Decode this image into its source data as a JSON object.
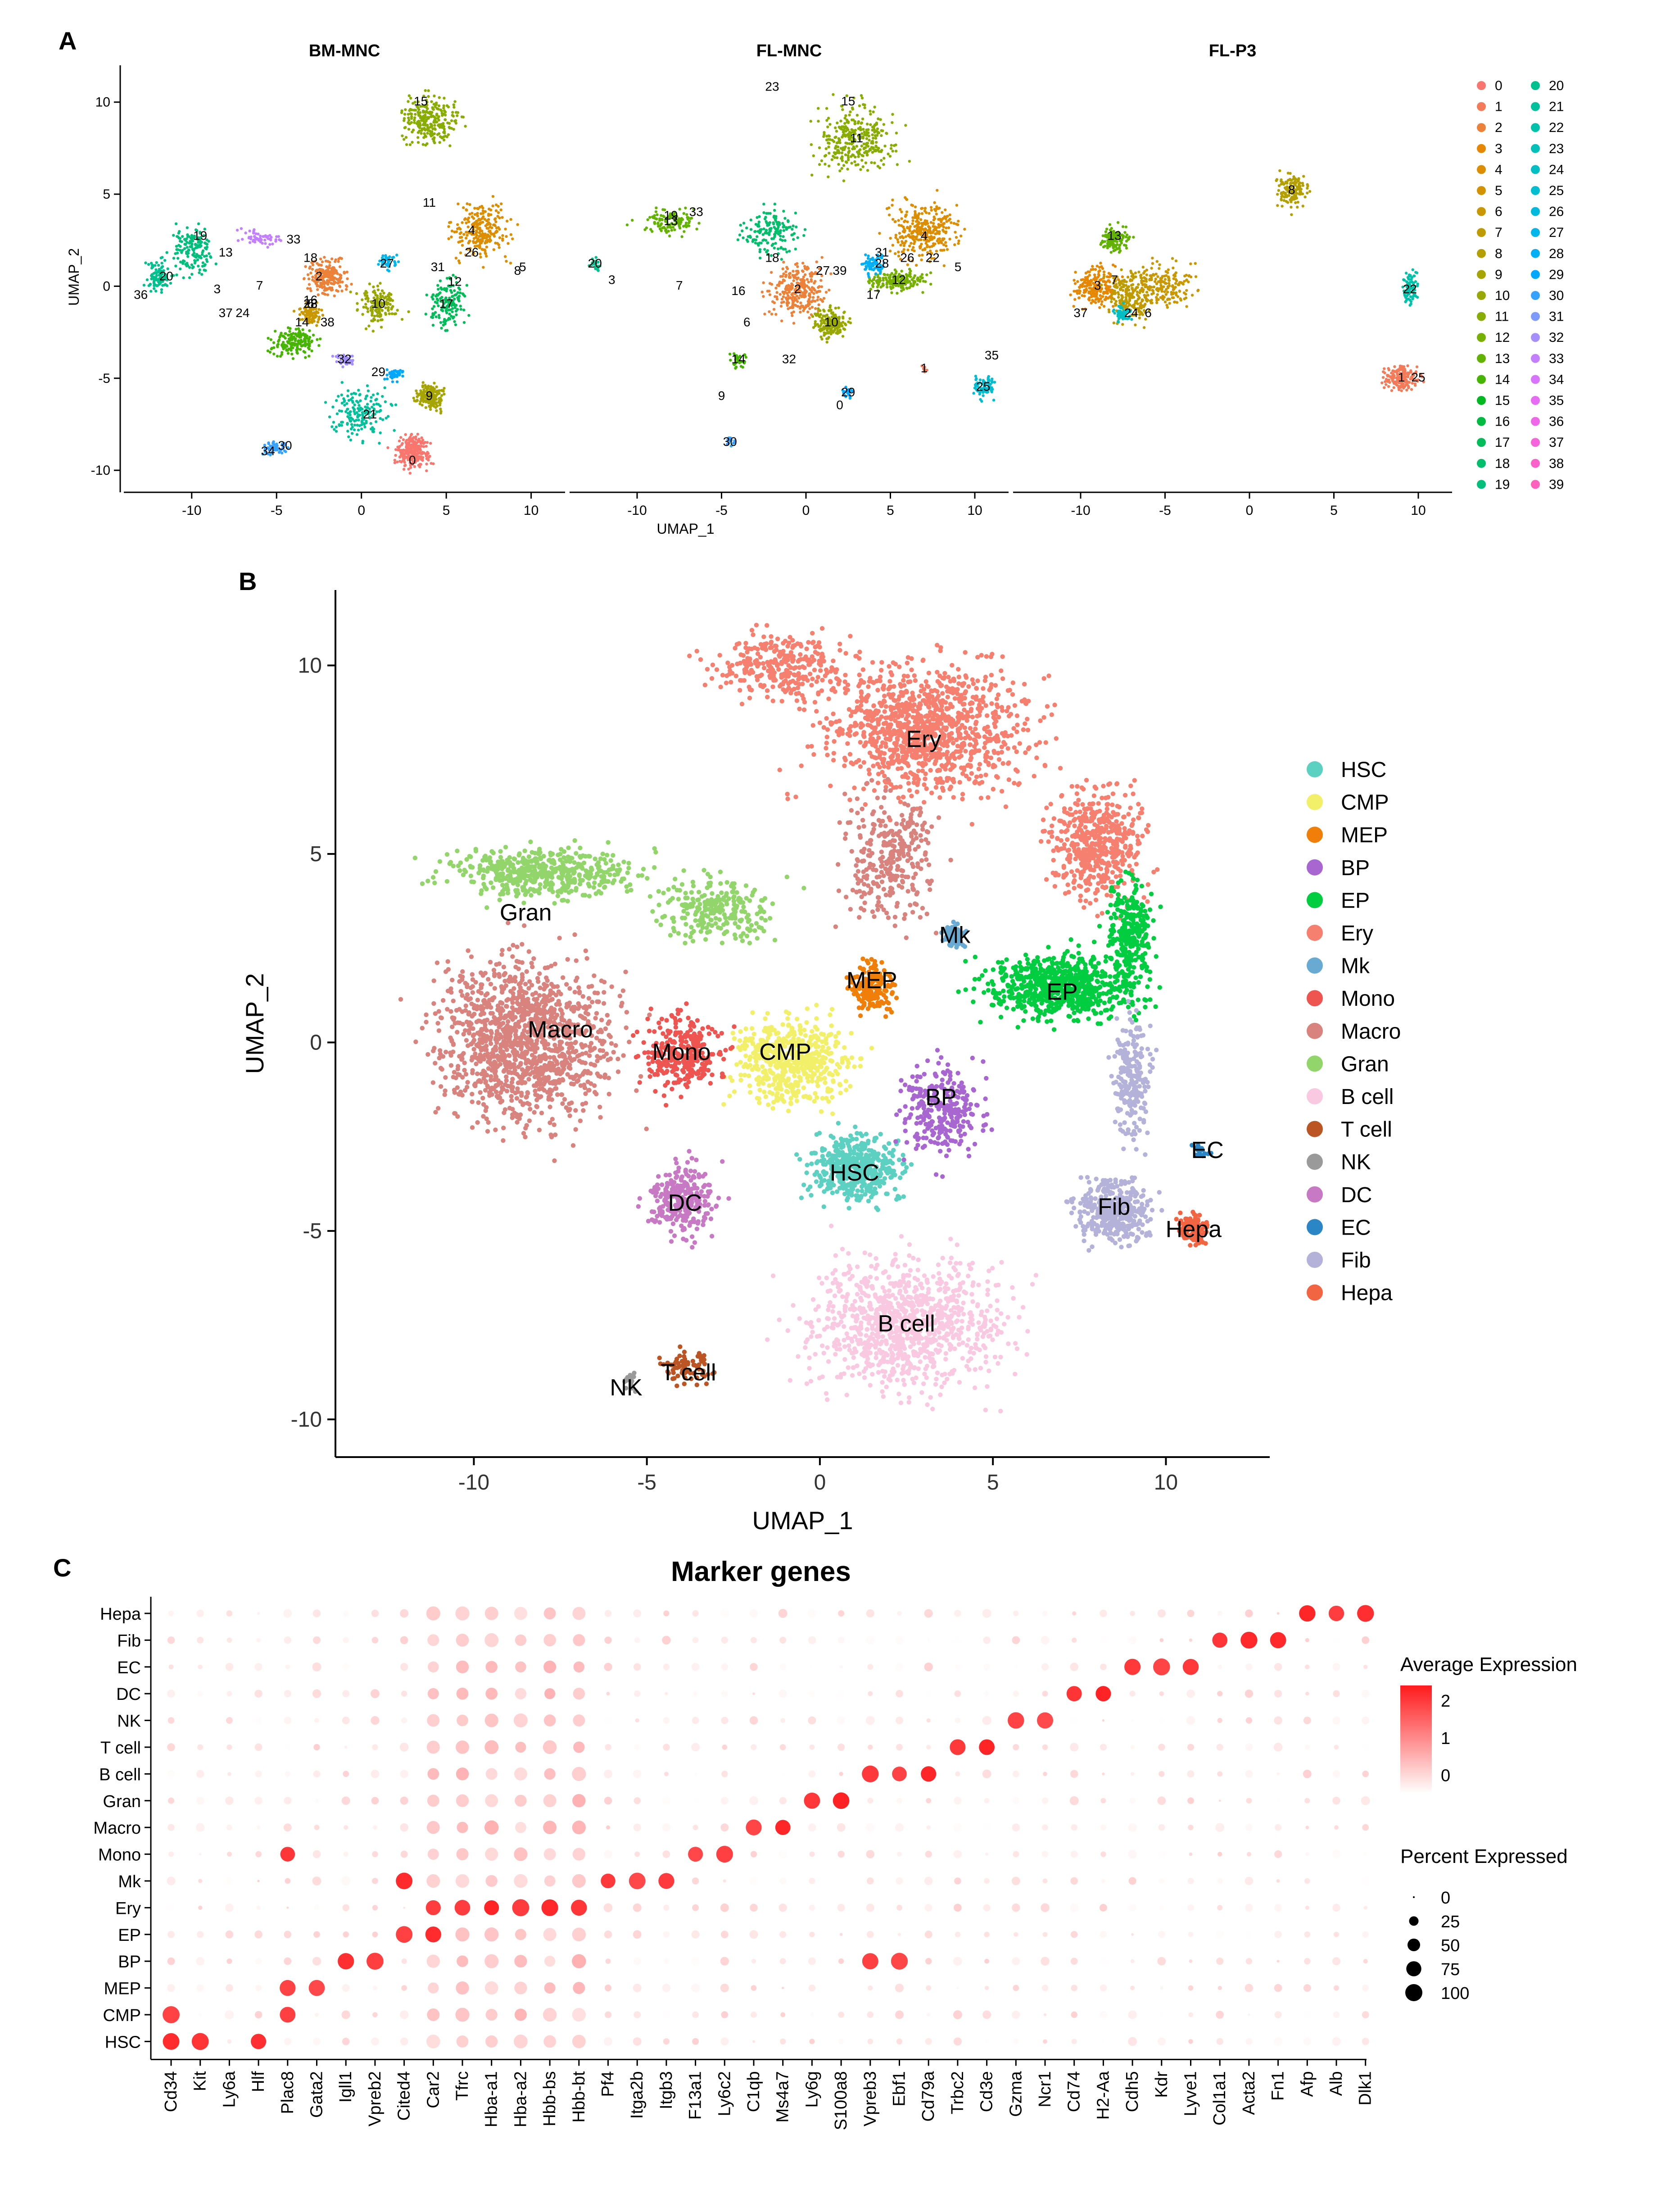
{
  "panels": {
    "a_label": "A",
    "b_label": "B",
    "c_label": "C"
  },
  "chart_data": [
    {
      "type": "scatter",
      "id": "A",
      "facets": [
        "BM-MNC",
        "FL-MNC",
        "FL-P3"
      ],
      "xlabel": "UMAP_1",
      "ylabel": "UMAP_2",
      "xlim": [
        -14,
        12
      ],
      "ylim": [
        -11,
        12
      ],
      "xticks": [
        -10,
        -5,
        0,
        5,
        10
      ],
      "yticks": [
        -10,
        -5,
        0,
        5,
        10
      ],
      "legend_title": "",
      "legend_position": "right",
      "clusters": [
        "0",
        "1",
        "2",
        "3",
        "4",
        "5",
        "6",
        "7",
        "8",
        "9",
        "10",
        "11",
        "12",
        "13",
        "14",
        "15",
        "16",
        "17",
        "18",
        "19",
        "20",
        "21",
        "22",
        "23",
        "24",
        "25",
        "26",
        "27",
        "28",
        "29",
        "30",
        "31",
        "32",
        "33",
        "34",
        "35",
        "36",
        "37",
        "38",
        "39"
      ],
      "cluster_colors": [
        "#F8766D",
        "#F37B59",
        "#EC8239",
        "#E58700",
        "#DC8D00",
        "#D39200",
        "#C99800",
        "#BE9C00",
        "#B3A000",
        "#A6A400",
        "#98A800",
        "#88AC00",
        "#76B000",
        "#61B300",
        "#45B500",
        "#00B81F",
        "#00BA42",
        "#00BC59",
        "#00BE6C",
        "#00BF7D",
        "#00C08D",
        "#00C19C",
        "#00C1AA",
        "#00C0B8",
        "#00BFC4",
        "#00BDD1",
        "#00BADE",
        "#00B6EB",
        "#00B0F6",
        "#00A9FF",
        "#35A2FF",
        "#7C9AFF",
        "#A58FFF",
        "#C280FF",
        "#D874FD",
        "#E66CF3",
        "#F066E8",
        "#F763DA",
        "#FC61CB",
        "#FF62BC"
      ],
      "cluster_label_positions": {
        "BM-MNC": [
          [
            3,
            -9.5,
            "0"
          ],
          [
            -2.5,
            0.5,
            "2"
          ],
          [
            -8.5,
            -0.2,
            "3"
          ],
          [
            6.5,
            3,
            "4"
          ],
          [
            9.5,
            1,
            "5"
          ],
          [
            -3,
            -1,
            "6"
          ],
          [
            -6,
            0,
            "7"
          ],
          [
            9.2,
            0.8,
            "8"
          ],
          [
            4,
            -6,
            "9"
          ],
          [
            1,
            -1,
            "10"
          ],
          [
            4,
            4.5,
            "11"
          ],
          [
            5.5,
            0.2,
            "12"
          ],
          [
            -8,
            1.8,
            "13"
          ],
          [
            -3.5,
            -2,
            "14"
          ],
          [
            3.5,
            10,
            "15"
          ],
          [
            -3,
            -0.8,
            "16"
          ],
          [
            5,
            -1,
            "17"
          ],
          [
            -3,
            1.5,
            "18"
          ],
          [
            -9.5,
            2.7,
            "19"
          ],
          [
            -11.5,
            0.5,
            "20"
          ],
          [
            0.5,
            -7,
            "21"
          ],
          [
            -3,
            -1,
            "23"
          ],
          [
            -7,
            -1.5,
            "24"
          ],
          [
            6.5,
            1.8,
            "26"
          ],
          [
            1.5,
            1.2,
            "27"
          ],
          [
            -3,
            -1,
            "28"
          ],
          [
            1,
            -4.7,
            "29"
          ],
          [
            -4.5,
            -8.7,
            "30"
          ],
          [
            4.5,
            1,
            "31"
          ],
          [
            -1,
            -4,
            "32"
          ],
          [
            -4,
            2.5,
            "33"
          ],
          [
            -5.5,
            -9,
            "34"
          ],
          [
            -13,
            -0.5,
            "36"
          ],
          [
            -8,
            -1.5,
            "37"
          ],
          [
            -2,
            -2,
            "38"
          ]
        ],
        "FL-MNC": [
          [
            2,
            -6.5,
            "0"
          ],
          [
            7,
            -4.5,
            "1"
          ],
          [
            -0.5,
            -0.2,
            "2"
          ],
          [
            -11.5,
            0.3,
            "3"
          ],
          [
            7,
            2.7,
            "4"
          ],
          [
            9,
            1,
            "5"
          ],
          [
            -3.5,
            -2,
            "6"
          ],
          [
            -7.5,
            0,
            "7"
          ],
          [
            -5,
            -6,
            "9"
          ],
          [
            1.5,
            -2,
            "10"
          ],
          [
            3,
            8,
            "11"
          ],
          [
            5.5,
            0.3,
            "12"
          ],
          [
            -8,
            3.5,
            "13"
          ],
          [
            -4,
            -4,
            "14"
          ],
          [
            2.5,
            10,
            "15"
          ],
          [
            -4,
            -0.3,
            "16"
          ],
          [
            4,
            -0.5,
            "17"
          ],
          [
            -2,
            1.5,
            "18"
          ],
          [
            -8,
            3.8,
            "19"
          ],
          [
            -12.5,
            1.2,
            "20"
          ],
          [
            7.5,
            1.5,
            "22"
          ],
          [
            -2,
            10.8,
            "23"
          ],
          [
            10.5,
            -5.5,
            "25"
          ],
          [
            6,
            1.5,
            "26"
          ],
          [
            1,
            0.8,
            "27"
          ],
          [
            4.5,
            1.2,
            "28"
          ],
          [
            2.5,
            -5.8,
            "29"
          ],
          [
            -4.5,
            -8.5,
            "30"
          ],
          [
            4.5,
            1.8,
            "31"
          ],
          [
            -1,
            -4,
            "32"
          ],
          [
            -6.5,
            4,
            "33"
          ],
          [
            11,
            -3.8,
            "35"
          ],
          [
            2,
            0.8,
            "39"
          ]
        ],
        "FL-P3": [
          [
            9,
            -5,
            "1"
          ],
          [
            -9,
            0,
            "3"
          ],
          [
            -6,
            -1.5,
            "6"
          ],
          [
            -8,
            0.3,
            "7"
          ],
          [
            2.5,
            5.2,
            "8"
          ],
          [
            -8,
            2.7,
            "13"
          ],
          [
            -7,
            -1.5,
            "24"
          ],
          [
            9.5,
            -0.2,
            "22"
          ],
          [
            10,
            -5,
            "25"
          ],
          [
            -10,
            -1.5,
            "37"
          ]
        ]
      }
    },
    {
      "type": "scatter",
      "id": "B",
      "xlabel": "UMAP_1",
      "ylabel": "UMAP_2",
      "xlim": [
        -14,
        13
      ],
      "ylim": [
        -11,
        12
      ],
      "xticks": [
        -10,
        -5,
        0,
        5,
        10
      ],
      "yticks": [
        -10,
        -5,
        0,
        5,
        10
      ],
      "legend_position": "right",
      "cell_types": [
        {
          "name": "HSC",
          "color": "#5CD1C2",
          "label_at": [
            1,
            -3.5
          ]
        },
        {
          "name": "CMP",
          "color": "#F1F068",
          "label_at": [
            -1,
            -0.3
          ]
        },
        {
          "name": "MEP",
          "color": "#F07F0A",
          "label_at": [
            1.5,
            1.6
          ]
        },
        {
          "name": "BP",
          "color": "#A866D1",
          "label_at": [
            3.5,
            -1.5
          ]
        },
        {
          "name": "EP",
          "color": "#00CD3F",
          "label_at": [
            7,
            1.3
          ]
        },
        {
          "name": "Ery",
          "color": "#F6806F",
          "label_at": [
            3,
            8
          ]
        },
        {
          "name": "Mk",
          "color": "#69AAD2",
          "label_at": [
            3.9,
            2.8
          ]
        },
        {
          "name": "Mono",
          "color": "#EE5551",
          "label_at": [
            -4,
            -0.3
          ]
        },
        {
          "name": "Macro",
          "color": "#D9837E",
          "label_at": [
            -7.5,
            0.3
          ]
        },
        {
          "name": "Gran",
          "color": "#92D66B",
          "label_at": [
            -8.5,
            3.4
          ]
        },
        {
          "name": "B cell",
          "color": "#F9C9E1",
          "label_at": [
            2.5,
            -7.5
          ]
        },
        {
          "name": "T cell",
          "color": "#BB5523",
          "label_at": [
            -3.8,
            -8.8
          ]
        },
        {
          "name": "NK",
          "color": "#9A9A9A",
          "label_at": [
            -5.6,
            -9.2
          ]
        },
        {
          "name": "DC",
          "color": "#C779C4",
          "label_at": [
            -3.9,
            -4.3
          ]
        },
        {
          "name": "EC",
          "color": "#2A86C4",
          "label_at": [
            11.2,
            -2.9
          ]
        },
        {
          "name": "Fib",
          "color": "#B5B2DA",
          "label_at": [
            8.5,
            -4.4
          ]
        },
        {
          "name": "Hepa",
          "color": "#F26542",
          "label_at": [
            10.8,
            -5
          ]
        }
      ]
    },
    {
      "type": "dot",
      "id": "C",
      "title": "Marker genes",
      "genes": [
        "Cd34",
        "Kit",
        "Ly6a",
        "Hlf",
        "Plac8",
        "Gata2",
        "Igll1",
        "Vpreb2",
        "Cited4",
        "Car2",
        "Tfrc",
        "Hba-a1",
        "Hba-a2",
        "Hbb-bs",
        "Hbb-bt",
        "Pf4",
        "Itga2b",
        "Itgb3",
        "F13a1",
        "Ly6c2",
        "C1qb",
        "Ms4a7",
        "Ly6g",
        "S100a8",
        "Vpreb3",
        "Ebf1",
        "Cd79a",
        "Trbc2",
        "Cd3e",
        "Gzma",
        "Ncr1",
        "Cd74",
        "H2-Aa",
        "Cdh5",
        "Kdr",
        "Lyve1",
        "Col1a1",
        "Acta2",
        "Fn1",
        "Afp",
        "Alb",
        "Dlk1"
      ],
      "cell_types": [
        "Hepa",
        "Fib",
        "EC",
        "DC",
        "NK",
        "T cell",
        "B cell",
        "Gran",
        "Macro",
        "Mono",
        "Mk",
        "Ery",
        "EP",
        "BP",
        "MEP",
        "CMP",
        "HSC"
      ],
      "color_legend_title": "Average Expression",
      "color_ticks": [
        2,
        1,
        0
      ],
      "color_range": [
        -0.5,
        2.4
      ],
      "size_legend_title": "Percent Expressed",
      "size_ticks": [
        0,
        25,
        50,
        75,
        100
      ],
      "markers": {
        "Hepa": [
          "Afp",
          "Alb",
          "Dlk1"
        ],
        "Fib": [
          "Col1a1",
          "Acta2",
          "Fn1"
        ],
        "EC": [
          "Cdh5",
          "Kdr",
          "Lyve1"
        ],
        "DC": [
          "Cd74",
          "H2-Aa"
        ],
        "NK": [
          "Gzma",
          "Ncr1"
        ],
        "T cell": [
          "Trbc2",
          "Cd3e"
        ],
        "B cell": [
          "Vpreb3",
          "Ebf1",
          "Cd79a"
        ],
        "Gran": [
          "Ly6g",
          "S100a8"
        ],
        "Macro": [
          "C1qb",
          "Ms4a7"
        ],
        "Mono": [
          "F13a1",
          "Ly6c2",
          "Plac8"
        ],
        "Mk": [
          "Pf4",
          "Itga2b",
          "Itgb3",
          "Cited4"
        ],
        "Ery": [
          "Tfrc",
          "Hba-a1",
          "Hba-a2",
          "Hbb-bs",
          "Hbb-bt",
          "Car2"
        ],
        "EP": [
          "Cited4",
          "Car2"
        ],
        "BP": [
          "Igll1",
          "Vpreb2",
          "Vpreb3",
          "Ebf1"
        ],
        "MEP": [
          "Gata2",
          "Plac8"
        ],
        "CMP": [
          "Cd34",
          "Plac8"
        ],
        "HSC": [
          "Cd34",
          "Kit",
          "Hlf"
        ]
      }
    }
  ]
}
